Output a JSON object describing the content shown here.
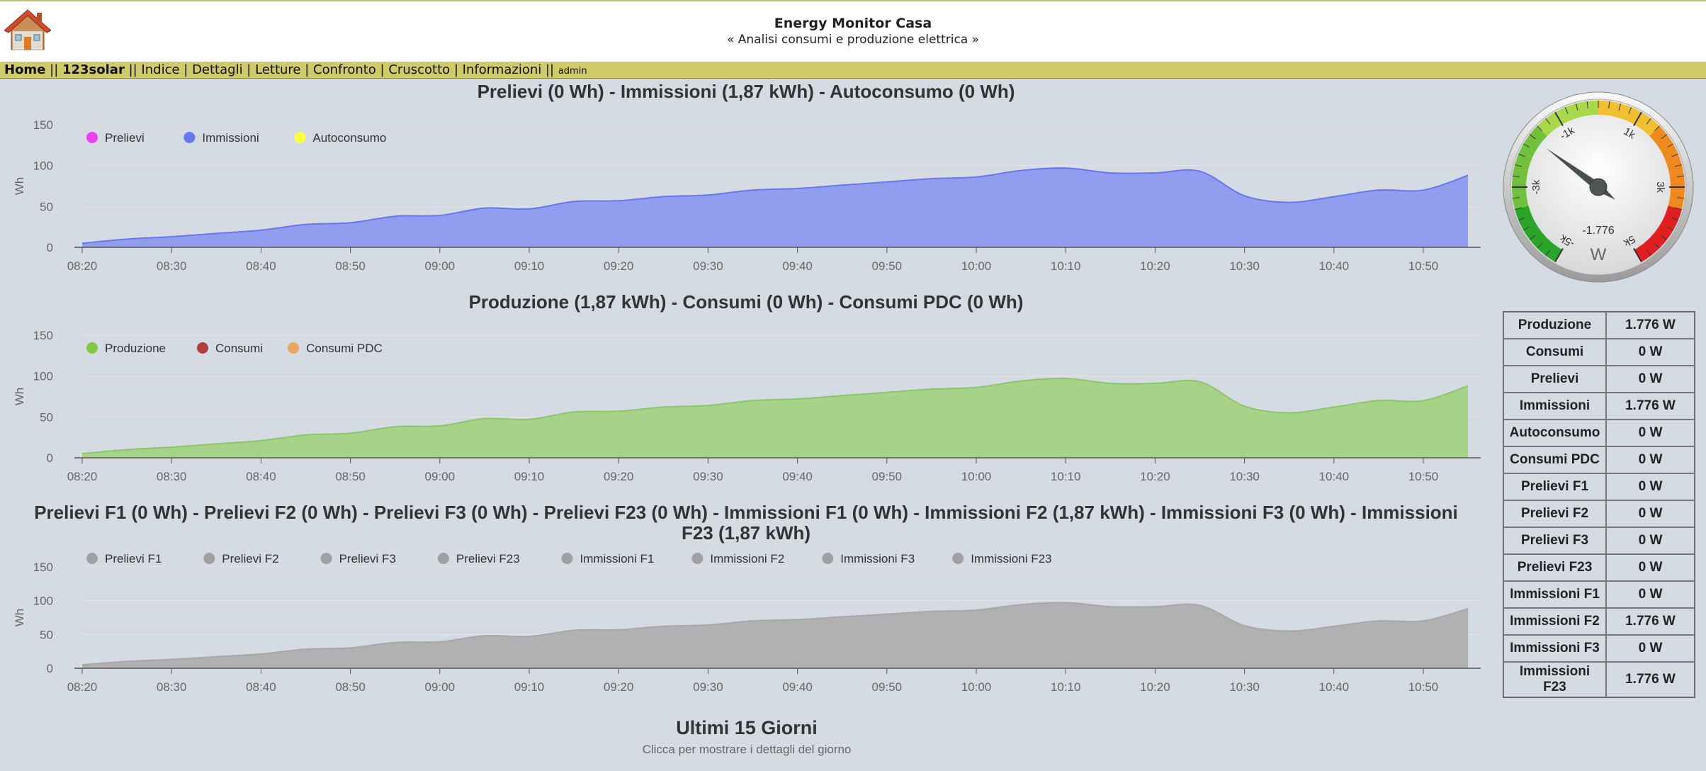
{
  "header": {
    "title": "Energy Monitor Casa",
    "subtitle": "« Analisi consumi e produzione elettrica »"
  },
  "nav": {
    "items": [
      {
        "label": "Home",
        "bold": true
      },
      {
        "sep": " || "
      },
      {
        "label": "123solar",
        "bold": true
      },
      {
        "sep": " || "
      },
      {
        "label": "Indice"
      },
      {
        "sep": " | "
      },
      {
        "label": "Dettagli"
      },
      {
        "sep": " | "
      },
      {
        "label": "Letture"
      },
      {
        "sep": " | "
      },
      {
        "label": "Confronto"
      },
      {
        "sep": " | "
      },
      {
        "label": "Cruscotto"
      },
      {
        "sep": " | "
      },
      {
        "label": "Informazioni"
      },
      {
        "sep": " || "
      },
      {
        "label": "admin",
        "small": true
      }
    ]
  },
  "chart_data": [
    {
      "type": "area",
      "title": "Prelievi (0 Wh) - Immissioni (1,87 kWh) - Autoconsumo (0 Wh)",
      "ylabel": "Wh",
      "ylim": [
        0,
        150
      ],
      "yticks": [
        0,
        50,
        100,
        150
      ],
      "xlabels": [
        "08:20",
        "08:30",
        "08:40",
        "08:50",
        "09:00",
        "09:10",
        "09:20",
        "09:30",
        "09:40",
        "09:50",
        "10:00",
        "10:10",
        "10:20",
        "10:30",
        "10:40",
        "10:50"
      ],
      "x": [
        "08:20",
        "08:25",
        "08:30",
        "08:35",
        "08:40",
        "08:45",
        "08:50",
        "08:55",
        "09:00",
        "09:05",
        "09:10",
        "09:15",
        "09:20",
        "09:25",
        "09:30",
        "09:35",
        "09:40",
        "09:45",
        "09:50",
        "09:55",
        "10:00",
        "10:05",
        "10:10",
        "10:15",
        "10:20",
        "10:25",
        "10:30",
        "10:35",
        "10:40",
        "10:45",
        "10:50",
        "10:55"
      ],
      "legend": [
        {
          "name": "Prelievi",
          "color": "#ec42ec"
        },
        {
          "name": "Immissioni",
          "color": "#6677f0"
        },
        {
          "name": "Autoconsumo",
          "color": "#ffff44"
        }
      ],
      "series": [
        {
          "name": "Prelievi",
          "color": "#ec42ec",
          "values": [
            0,
            0,
            0,
            0,
            0,
            0,
            0,
            0,
            0,
            0,
            0,
            0,
            0,
            0,
            0,
            0,
            0,
            0,
            0,
            0,
            0,
            0,
            0,
            0,
            0,
            0,
            0,
            0,
            0,
            0,
            0,
            0
          ]
        },
        {
          "name": "Immissioni",
          "color": "#6677f0",
          "fill": "#919ef0",
          "values": [
            5,
            10,
            13,
            17,
            21,
            28,
            30,
            38,
            39,
            48,
            47,
            56,
            57,
            62,
            64,
            70,
            72,
            76,
            80,
            84,
            86,
            94,
            97,
            91,
            91,
            93,
            63,
            55,
            62,
            70,
            70,
            88
          ]
        },
        {
          "name": "Autoconsumo",
          "color": "#ffff44",
          "values": [
            0,
            0,
            0,
            0,
            0,
            0,
            0,
            0,
            0,
            0,
            0,
            0,
            0,
            0,
            0,
            0,
            0,
            0,
            0,
            0,
            0,
            0,
            0,
            0,
            0,
            0,
            0,
            0,
            0,
            0,
            0,
            0
          ]
        }
      ]
    },
    {
      "type": "area",
      "title": "Produzione (1,87 kWh) - Consumi (0 Wh) - Consumi PDC (0 Wh)",
      "ylabel": "Wh",
      "ylim": [
        0,
        150
      ],
      "yticks": [
        0,
        50,
        100,
        150
      ],
      "xlabels": [
        "08:20",
        "08:30",
        "08:40",
        "08:50",
        "09:00",
        "09:10",
        "09:20",
        "09:30",
        "09:40",
        "09:50",
        "10:00",
        "10:10",
        "10:20",
        "10:30",
        "10:40",
        "10:50"
      ],
      "x": [
        "08:20",
        "08:25",
        "08:30",
        "08:35",
        "08:40",
        "08:45",
        "08:50",
        "08:55",
        "09:00",
        "09:05",
        "09:10",
        "09:15",
        "09:20",
        "09:25",
        "09:30",
        "09:35",
        "09:40",
        "09:45",
        "09:50",
        "09:55",
        "10:00",
        "10:05",
        "10:10",
        "10:15",
        "10:20",
        "10:25",
        "10:30",
        "10:35",
        "10:40",
        "10:45",
        "10:50",
        "10:55"
      ],
      "legend": [
        {
          "name": "Produzione",
          "color": "#7fc840"
        },
        {
          "name": "Consumi",
          "color": "#b03c3c"
        },
        {
          "name": "Consumi PDC",
          "color": "#e8a860"
        }
      ],
      "series": [
        {
          "name": "Produzione",
          "color": "#8cc56a",
          "fill": "#a6d388",
          "values": [
            5,
            10,
            13,
            17,
            21,
            28,
            30,
            38,
            39,
            48,
            47,
            56,
            57,
            62,
            64,
            70,
            72,
            76,
            80,
            84,
            86,
            94,
            97,
            91,
            91,
            93,
            63,
            55,
            62,
            70,
            70,
            88
          ]
        },
        {
          "name": "Consumi",
          "color": "#b03c3c",
          "values": [
            0,
            0,
            0,
            0,
            0,
            0,
            0,
            0,
            0,
            0,
            0,
            0,
            0,
            0,
            0,
            0,
            0,
            0,
            0,
            0,
            0,
            0,
            0,
            0,
            0,
            0,
            0,
            0,
            0,
            0,
            0,
            0
          ]
        },
        {
          "name": "Consumi PDC",
          "color": "#e8a860",
          "values": [
            0,
            0,
            0,
            0,
            0,
            0,
            0,
            0,
            0,
            0,
            0,
            0,
            0,
            0,
            0,
            0,
            0,
            0,
            0,
            0,
            0,
            0,
            0,
            0,
            0,
            0,
            0,
            0,
            0,
            0,
            0,
            0
          ]
        }
      ]
    },
    {
      "type": "area",
      "title": "Prelievi F1 (0 Wh) - Prelievi F2 (0 Wh) - Prelievi F3 (0 Wh) - Prelievi F23 (0 Wh) - Immissioni F1 (0 Wh) - Immissioni F2 (1,87 kWh) - Immissioni F3 (0 Wh) - Immissioni",
      "title2": "F23 (1,87 kWh)",
      "ylabel": "Wh",
      "ylim": [
        0,
        150
      ],
      "yticks": [
        0,
        50,
        100,
        150
      ],
      "xlabels": [
        "08:20",
        "08:30",
        "08:40",
        "08:50",
        "09:00",
        "09:10",
        "09:20",
        "09:30",
        "09:40",
        "09:50",
        "10:00",
        "10:10",
        "10:20",
        "10:30",
        "10:40",
        "10:50"
      ],
      "x": [
        "08:20",
        "08:25",
        "08:30",
        "08:35",
        "08:40",
        "08:45",
        "08:50",
        "08:55",
        "09:00",
        "09:05",
        "09:10",
        "09:15",
        "09:20",
        "09:25",
        "09:30",
        "09:35",
        "09:40",
        "09:45",
        "09:50",
        "09:55",
        "10:00",
        "10:05",
        "10:10",
        "10:15",
        "10:20",
        "10:25",
        "10:30",
        "10:35",
        "10:40",
        "10:45",
        "10:50",
        "10:55"
      ],
      "legend": [
        {
          "name": "Prelievi F1",
          "color": "#a0a0a0"
        },
        {
          "name": "Prelievi F2",
          "color": "#a0a0a0"
        },
        {
          "name": "Prelievi F3",
          "color": "#a0a0a0"
        },
        {
          "name": "Prelievi F23",
          "color": "#a0a0a0"
        },
        {
          "name": "Immissioni F1",
          "color": "#a0a0a0"
        },
        {
          "name": "Immissioni F2",
          "color": "#a0a0a0"
        },
        {
          "name": "Immissioni F3",
          "color": "#a0a0a0"
        },
        {
          "name": "Immissioni F23",
          "color": "#a0a0a0"
        }
      ],
      "series": [
        {
          "name": "Immissioni F2",
          "color": "#a8a8a8",
          "fill": "#b1b1b1",
          "values": [
            5,
            10,
            13,
            17,
            21,
            28,
            30,
            38,
            39,
            48,
            47,
            56,
            57,
            62,
            64,
            70,
            72,
            76,
            80,
            84,
            86,
            94,
            97,
            91,
            91,
            93,
            63,
            55,
            62,
            70,
            70,
            88
          ]
        },
        {
          "name": "Immissioni F23",
          "color": "#a8a8a8",
          "fill": "#b1b1b1",
          "values": [
            5,
            10,
            13,
            17,
            21,
            28,
            30,
            38,
            39,
            48,
            47,
            56,
            57,
            62,
            64,
            70,
            72,
            76,
            80,
            84,
            86,
            94,
            97,
            91,
            91,
            93,
            63,
            55,
            62,
            70,
            70,
            88
          ]
        }
      ]
    }
  ],
  "days_section": {
    "title": "Ultimi 15 Giorni",
    "subtitle": "Clicca per mostrare i dettagli del giorno"
  },
  "gauge": {
    "unit": "W",
    "value": -1776,
    "value_label": "-1.776",
    "min": -5000,
    "max": 5000,
    "tick_labels": [
      "-5k",
      "-3k",
      "-1k",
      "1k",
      "3k",
      "5k"
    ]
  },
  "readings": [
    {
      "label": "Produzione",
      "value": "1.776 W"
    },
    {
      "label": "Consumi",
      "value": "0 W"
    },
    {
      "label": "Prelievi",
      "value": "0 W"
    },
    {
      "label": "Immissioni",
      "value": "1.776 W"
    },
    {
      "label": "Autoconsumo",
      "value": "0 W"
    },
    {
      "label": "Consumi PDC",
      "value": "0 W"
    },
    {
      "label": "Prelievi F1",
      "value": "0 W"
    },
    {
      "label": "Prelievi F2",
      "value": "0 W"
    },
    {
      "label": "Prelievi F3",
      "value": "0 W"
    },
    {
      "label": "Prelievi F23",
      "value": "0 W"
    },
    {
      "label": "Immissioni F1",
      "value": "0 W"
    },
    {
      "label": "Immissioni F2",
      "value": "1.776 W"
    },
    {
      "label": "Immissioni F3",
      "value": "0 W"
    },
    {
      "label": "Immissioni F23",
      "value": "1.776 W"
    }
  ]
}
